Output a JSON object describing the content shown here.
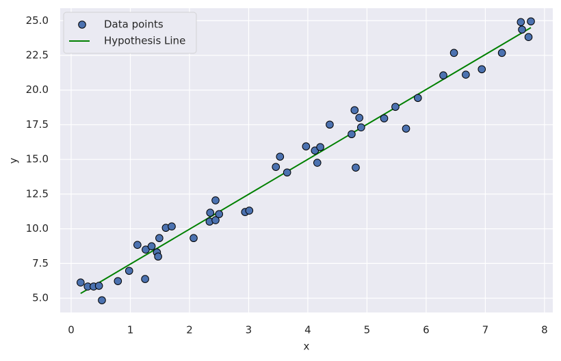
{
  "chart_data": {
    "type": "scatter",
    "xlabel": "x",
    "ylabel": "y",
    "xlim": [
      -0.185,
      8.14
    ],
    "ylim": [
      3.97,
      25.9
    ],
    "xticks": [
      0,
      1,
      2,
      3,
      4,
      5,
      6,
      7,
      8
    ],
    "yticks": [
      {
        "value": 5,
        "label": "5.0"
      },
      7.5,
      {
        "value": 10,
        "label": "10.0"
      },
      12.5,
      {
        "value": 15,
        "label": "15.0"
      },
      17.5,
      {
        "value": 20,
        "label": "20.0"
      },
      22.5,
      {
        "value": 25,
        "label": "25.0"
      }
    ],
    "grid": true,
    "legend": "upper-left",
    "series": [
      {
        "name": "Data points",
        "type": "scatter",
        "color": "#4c72b0",
        "x": [
          0.16,
          0.28,
          0.38,
          0.47,
          0.52,
          0.79,
          0.98,
          1.12,
          1.26,
          1.25,
          1.36,
          1.45,
          1.47,
          1.49,
          1.6,
          1.7,
          2.07,
          2.35,
          2.34,
          2.44,
          2.44,
          2.5,
          2.94,
          3.01,
          3.46,
          3.53,
          3.65,
          3.97,
          4.12,
          4.21,
          4.16,
          4.37,
          4.74,
          4.79,
          4.87,
          4.9,
          4.81,
          5.29,
          5.48,
          5.66,
          5.86,
          6.29,
          6.47,
          6.67,
          6.94,
          7.28,
          7.6,
          7.62,
          7.73,
          7.77
        ],
        "y": [
          6.13,
          5.84,
          5.84,
          5.89,
          4.85,
          6.23,
          6.97,
          8.84,
          8.5,
          6.38,
          8.74,
          8.3,
          8.0,
          9.33,
          10.07,
          10.17,
          9.33,
          11.16,
          10.52,
          12.05,
          10.62,
          11.06,
          11.21,
          11.31,
          14.46,
          15.2,
          14.06,
          15.94,
          15.64,
          15.89,
          14.76,
          17.51,
          16.82,
          18.55,
          18.0,
          17.31,
          14.41,
          17.96,
          18.79,
          17.22,
          19.43,
          21.06,
          22.68,
          21.11,
          21.5,
          22.68,
          24.9,
          24.36,
          23.82,
          24.95
        ]
      },
      {
        "name": "Hypothesis Line",
        "type": "line",
        "color": "#008000",
        "x": [
          0.16,
          7.77
        ],
        "y": [
          5.34,
          24.5
        ]
      }
    ]
  }
}
